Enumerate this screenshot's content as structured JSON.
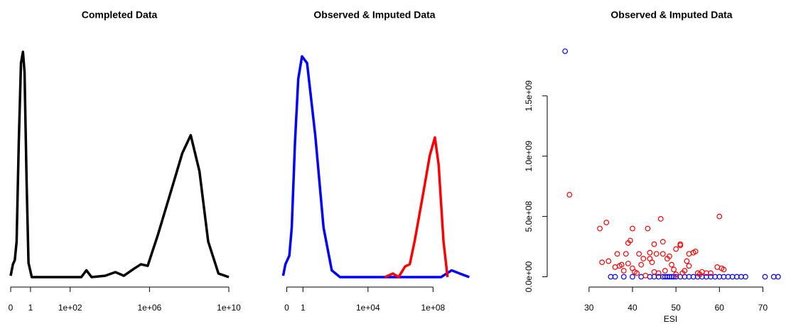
{
  "chart_data": [
    {
      "type": "line",
      "title": "Completed Data",
      "xscale": "symlog",
      "xlim": [
        0,
        10000000000
      ],
      "ylim": [
        0,
        1
      ],
      "xticks": [
        0,
        1,
        {
          "value": 100,
          "label": "1e+02"
        },
        {
          "value": 1000000,
          "label": "1e+06"
        },
        {
          "value": 10000000000,
          "label": "1e+10"
        }
      ],
      "series": [
        {
          "color": "#000000",
          "x": [
            0,
            0.115,
            0.21,
            0.3,
            0.41,
            0.52,
            0.62,
            0.7,
            0.8,
            0.9,
            1.16,
            363,
            660,
            1200,
            5800,
            19000,
            51000,
            170000,
            370000,
            810000,
            2700000,
            12000000,
            45000000,
            120000000,
            330000000,
            910000000,
            3000000000,
            10000000000
          ],
          "values": [
            0.006,
            0.057,
            0.076,
            0.158,
            0.6,
            0.95,
            1.0,
            0.91,
            0.44,
            0.063,
            0,
            0,
            0.03,
            0,
            0.006,
            0.022,
            0.006,
            0.038,
            0.057,
            0.05,
            0.19,
            0.38,
            0.55,
            0.63,
            0.47,
            0.158,
            0.016,
            0
          ]
        }
      ]
    },
    {
      "type": "line",
      "title": "Observed & Imputed Data",
      "xscale": "symlog",
      "xlim": [
        -0.5,
        20000000000
      ],
      "ylim": [
        0,
        1
      ],
      "xticks": [
        0,
        1,
        {
          "value": 10000,
          "label": "1e+04"
        },
        {
          "value": 100000000,
          "label": "1e+08"
        }
      ],
      "series": [
        {
          "color": "#0000ff",
          "x": [
            -0.22,
            -0.08,
            0.04,
            0.16,
            0.31,
            0.51,
            0.71,
            0.94,
            1.79,
            5.7,
            18.4,
            59,
            190,
            310000000,
            1400000000,
            4300000000,
            17000000000
          ],
          "values": [
            0.006,
            0.057,
            0.076,
            0.095,
            0.22,
            0.6,
            0.88,
            0.98,
            0.95,
            0.63,
            0.22,
            0.03,
            0,
            0,
            0.03,
            0.016,
            0
          ]
        },
        {
          "color": "#ff0000",
          "x": [
            110000,
            340000,
            760000,
            1900000,
            3700000,
            7300000,
            26000000,
            63000000,
            130000000,
            220000000,
            440000000,
            780000000
          ],
          "values": [
            0,
            0.016,
            0,
            0.047,
            0.057,
            0.158,
            0.38,
            0.54,
            0.62,
            0.5,
            0.158,
            0
          ]
        }
      ]
    },
    {
      "type": "scatter",
      "title": "Observed & Imputed Data",
      "x_label": "ESI",
      "xlim": [
        23,
        74.5
      ],
      "ylim": [
        -50000000,
        1900000000
      ],
      "xticks": [
        30,
        40,
        50,
        60,
        70
      ],
      "yticks": [
        {
          "value": 0,
          "label": "0.0e+00"
        },
        {
          "value": 500000000,
          "label": "5.0e+08"
        },
        {
          "value": 1000000000,
          "label": "1.0e+09"
        },
        {
          "value": 1500000000,
          "label": "1.5e+09"
        }
      ],
      "series": [
        {
          "color": "#0000ff",
          "x": [
            24.5,
            35,
            36,
            38,
            40,
            42,
            44,
            45,
            46,
            47,
            47.5,
            48,
            48.5,
            49,
            49.5,
            50,
            51,
            52,
            53,
            54,
            55,
            56,
            57,
            58,
            59,
            60,
            61,
            62,
            63,
            64,
            65,
            66,
            70.5,
            72.5,
            73.5
          ],
          "values": [
            1870000000,
            0,
            0,
            0,
            0,
            0,
            0,
            0,
            0,
            0,
            0,
            0,
            0,
            0,
            0,
            0,
            0,
            0,
            0,
            0,
            0,
            0,
            0,
            0,
            0,
            0,
            0,
            0,
            0,
            0,
            0,
            0,
            0,
            0,
            0
          ]
        },
        {
          "color": "#ff0000",
          "x": [
            25.5,
            32.5,
            34,
            33,
            34.5,
            36,
            36.5,
            37,
            37.5,
            38,
            38.5,
            39,
            39,
            39.5,
            40,
            40,
            40.5,
            41,
            41.5,
            42,
            42.5,
            43,
            43.5,
            44,
            44,
            44.5,
            45,
            45,
            45.5,
            46,
            46.5,
            47,
            47,
            47.5,
            48,
            48.5,
            49,
            49.5,
            50,
            50,
            51,
            51,
            51.5,
            52,
            52.5,
            53,
            53,
            54,
            54.5,
            55,
            55.5,
            56,
            57,
            58,
            59.5,
            60,
            60.5,
            61
          ],
          "values": [
            680000000,
            400000000,
            450000000,
            120000000,
            130000000,
            80000000,
            190000000,
            90000000,
            100000000,
            50000000,
            190000000,
            110000000,
            280000000,
            300000000,
            400000000,
            70000000,
            40000000,
            30000000,
            190000000,
            100000000,
            150000000,
            10000000,
            400000000,
            150000000,
            200000000,
            120000000,
            40000000,
            270000000,
            190000000,
            30000000,
            480000000,
            190000000,
            290000000,
            50000000,
            150000000,
            170000000,
            100000000,
            60000000,
            230000000,
            20000000,
            260000000,
            270000000,
            30000000,
            50000000,
            130000000,
            190000000,
            90000000,
            200000000,
            210000000,
            30000000,
            20000000,
            40000000,
            30000000,
            30000000,
            80000000,
            500000000,
            70000000,
            60000000
          ]
        }
      ]
    }
  ]
}
